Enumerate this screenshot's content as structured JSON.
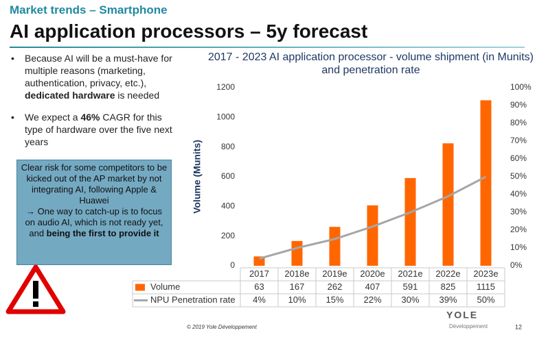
{
  "header": {
    "section": "Market trends – Smartphone",
    "title": "AI application processors – 5y forecast"
  },
  "bullets": [
    [
      "Because AI will be a must-have for multiple reasons (marketing, authentication, privacy, etc.), ",
      "dedicated hardware",
      " is needed"
    ],
    [
      "We expect a ",
      "46%",
      " CAGR for this type of hardware over the five next years"
    ]
  ],
  "callout": [
    "Clear risk for some competitors to be kicked out of the AP market by not integrating AI, following Apple & Huawei",
    "→ One way to catch-up is to focus on audio AI, which is not ready yet, and ",
    "being the first to provide it"
  ],
  "chart_data": {
    "type": "bar",
    "title": "2017 - 2023 AI application processor - volume shipment (in Munits) and penetration rate",
    "y_label": "Volume (Munits)",
    "categories": [
      "2017",
      "2018e",
      "2019e",
      "2020e",
      "2021e",
      "2022e",
      "2023e"
    ],
    "series": [
      {
        "name": "Volume",
        "type": "bar",
        "color": "#ff6600",
        "values": [
          63,
          167,
          262,
          407,
          591,
          825,
          1115
        ]
      },
      {
        "name": "NPU Penetration rate",
        "type": "line",
        "axis": "y2",
        "color": "#a6a6a6",
        "values": [
          4,
          10,
          15,
          22,
          30,
          39,
          50
        ],
        "value_labels": [
          "4%",
          "10%",
          "15%",
          "22%",
          "30%",
          "39%",
          "50%"
        ]
      }
    ],
    "ylim": [
      0,
      1200
    ],
    "yticks": [
      0,
      200,
      400,
      600,
      800,
      1000,
      1200
    ],
    "y2lim": [
      0,
      100
    ],
    "y2ticks": [
      {
        "value": 0,
        "label": "0%"
      },
      {
        "value": 10,
        "label": "10%"
      },
      {
        "value": 20,
        "label": "20%"
      },
      {
        "value": 30,
        "label": "30%"
      },
      {
        "value": 40,
        "label": "40%"
      },
      {
        "value": 50,
        "label": "50%"
      },
      {
        "value": 60,
        "label": "60%"
      },
      {
        "value": 70,
        "label": "70%"
      },
      {
        "value": 80,
        "label": "80%"
      },
      {
        "value": 90,
        "label": "90%"
      },
      {
        "value": 100,
        "label": "100%"
      }
    ],
    "grid": false
  },
  "footer": {
    "copyright": "© 2019 Yole Développement",
    "logo": "YOLE",
    "logo_sub": "Développement",
    "page": "12"
  }
}
